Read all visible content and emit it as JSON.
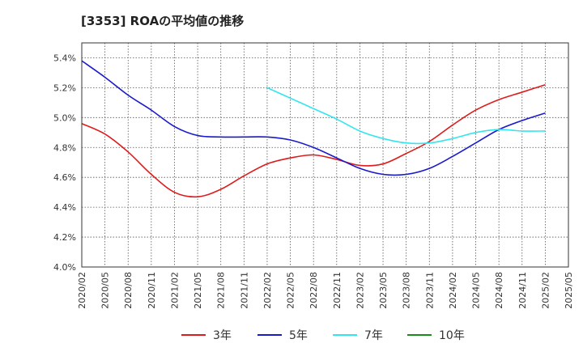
{
  "chart_data": {
    "type": "line",
    "title": "[3353]  ROAの平均値の推移",
    "xlabel": "",
    "ylabel": "",
    "x": [
      "2020/02",
      "2020/05",
      "2020/08",
      "2020/11",
      "2021/02",
      "2021/05",
      "2021/08",
      "2021/11",
      "2022/02",
      "2022/05",
      "2022/08",
      "2022/11",
      "2023/02",
      "2023/05",
      "2023/08",
      "2023/11",
      "2024/02",
      "2024/05",
      "2024/08",
      "2024/11",
      "2025/02",
      "2025/05"
    ],
    "ylim": [
      4.0,
      5.5
    ],
    "yticks": [
      4.0,
      4.2,
      4.4,
      4.6,
      4.8,
      5.0,
      5.2,
      5.4
    ],
    "ytick_labels": [
      "4.0%",
      "4.2%",
      "4.4%",
      "4.6%",
      "4.8%",
      "5.0%",
      "5.2%",
      "5.4%"
    ],
    "grid": true,
    "legend_position": "bottom",
    "series": [
      {
        "name": "3年",
        "color": "#dd1c1c",
        "values": [
          4.96,
          4.89,
          4.77,
          4.62,
          4.5,
          4.47,
          4.52,
          4.61,
          4.69,
          4.73,
          4.75,
          4.72,
          4.68,
          4.69,
          4.76,
          4.84,
          4.95,
          5.05,
          5.12,
          5.17,
          5.22,
          null
        ]
      },
      {
        "name": "5年",
        "color": "#1a1acc",
        "values": [
          5.38,
          5.27,
          5.15,
          5.05,
          4.94,
          4.88,
          4.87,
          4.87,
          4.87,
          4.85,
          4.8,
          4.73,
          4.66,
          4.62,
          4.62,
          4.66,
          4.74,
          4.83,
          4.92,
          4.98,
          5.03,
          null
        ]
      },
      {
        "name": "7年",
        "color": "#33e5ee",
        "values": [
          null,
          null,
          null,
          null,
          null,
          null,
          null,
          null,
          5.2,
          5.13,
          5.06,
          4.99,
          4.91,
          4.86,
          4.83,
          4.83,
          4.86,
          4.9,
          4.92,
          4.91,
          4.91,
          null
        ]
      },
      {
        "name": "10年",
        "color": "#1a8c1a",
        "values": [
          null,
          null,
          null,
          null,
          null,
          null,
          null,
          null,
          null,
          null,
          null,
          null,
          null,
          null,
          null,
          null,
          null,
          null,
          null,
          null,
          null,
          null
        ]
      }
    ]
  }
}
